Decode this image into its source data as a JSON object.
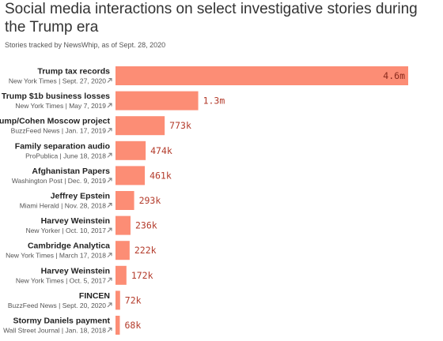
{
  "header": {
    "title": "Social media interactions on select investigative stories during the Trump era",
    "subtitle": "Stories tracked by NewsWhip, as of Sept. 28, 2020"
  },
  "colors": {
    "bar": "#fc8d75",
    "value_text": "#b33a2a"
  },
  "link_icon": "arrow-up-right-icon",
  "chart_data": {
    "type": "bar",
    "orientation": "horizontal",
    "grid": false,
    "xlim": [
      0,
      4600000
    ],
    "categories": [
      {
        "title": "Trump tax records",
        "outlet": "New York Times",
        "date": "Sept. 27, 2020"
      },
      {
        "title": "Trump $1b business losses",
        "outlet": "New York Times",
        "date": "May 7, 2019"
      },
      {
        "title": "Trump/Cohen Moscow project",
        "outlet": "BuzzFeed News",
        "date": "Jan. 17, 2019"
      },
      {
        "title": "Family separation audio",
        "outlet": "ProPublica",
        "date": "June 18, 2018"
      },
      {
        "title": "Afghanistan Papers",
        "outlet": "Washington Post",
        "date": "Dec. 9, 2019"
      },
      {
        "title": "Jeffrey Epstein",
        "outlet": "Miami Herald",
        "date": "Nov. 28, 2018"
      },
      {
        "title": "Harvey Weinstein",
        "outlet": "New Yorker",
        "date": "Oct. 10, 2017"
      },
      {
        "title": "Cambridge Analytica",
        "outlet": "New York Times",
        "date": "March 17, 2018"
      },
      {
        "title": "Harvey Weinstein",
        "outlet": "New York Times",
        "date": "Oct. 5, 2017"
      },
      {
        "title": "FINCEN",
        "outlet": "BuzzFeed News",
        "date": "Sept. 20, 2020"
      },
      {
        "title": "Stormy Daniels payment",
        "outlet": "Wall Street Journal",
        "date": "Jan. 18, 2018"
      }
    ],
    "values": [
      4600000,
      1300000,
      773000,
      474000,
      461000,
      293000,
      236000,
      222000,
      172000,
      72000,
      68000
    ],
    "value_labels": [
      "4.6m",
      "1.3m",
      "773k",
      "474k",
      "461k",
      "293k",
      "236k",
      "222k",
      "172k",
      "72k",
      "68k"
    ]
  }
}
